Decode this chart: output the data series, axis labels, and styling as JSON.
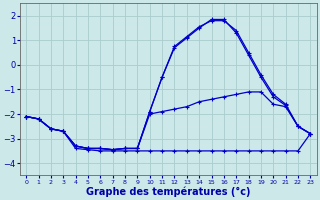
{
  "bg_color": "#cce8e8",
  "grid_color": "#aacccc",
  "line_color": "#0000cc",
  "marker": "+",
  "xlabel": "Graphe des températures (°c)",
  "xlabel_fontsize": 7,
  "xlim": [
    -0.5,
    23.5
  ],
  "ylim": [
    -4.5,
    2.5
  ],
  "yticks": [
    -4,
    -3,
    -2,
    -1,
    0,
    1,
    2
  ],
  "ytick_labels": [
    "-4",
    "-3",
    "-2",
    "-1",
    "0",
    "1",
    "2"
  ],
  "xticks": [
    0,
    1,
    2,
    3,
    4,
    5,
    6,
    7,
    8,
    9,
    10,
    11,
    12,
    13,
    14,
    15,
    16,
    17,
    18,
    19,
    20,
    21,
    22,
    23
  ],
  "series": [
    {
      "x": [
        0,
        1,
        2,
        3,
        4,
        5,
        6,
        7,
        8,
        9,
        10,
        11,
        12,
        13,
        14,
        15,
        16,
        17,
        18,
        19,
        20,
        21,
        22,
        23
      ],
      "y": [
        -2.1,
        -2.2,
        -2.6,
        -2.7,
        -3.4,
        -3.45,
        -3.5,
        -3.5,
        -3.5,
        -3.5,
        -3.5,
        -3.5,
        -3.5,
        -3.5,
        -3.5,
        -3.5,
        -3.5,
        -3.5,
        -3.5,
        -3.5,
        -3.5,
        -3.5,
        -3.5,
        -2.8
      ]
    },
    {
      "x": [
        0,
        1,
        2,
        3,
        4,
        5,
        6,
        7,
        8,
        9,
        10,
        11,
        12,
        13,
        14,
        15,
        16,
        17,
        18,
        19,
        20,
        21,
        22,
        23
      ],
      "y": [
        -2.1,
        -2.2,
        -2.6,
        -2.7,
        -3.3,
        -3.4,
        -3.4,
        -3.45,
        -3.4,
        -3.4,
        -2.0,
        -1.9,
        -1.8,
        -1.7,
        -1.5,
        -1.4,
        -1.3,
        -1.2,
        -1.1,
        -1.1,
        -1.6,
        -1.7,
        -2.5,
        -2.8
      ]
    },
    {
      "x": [
        0,
        1,
        2,
        3,
        4,
        5,
        6,
        7,
        8,
        9,
        10,
        11,
        12,
        13,
        14,
        15,
        16,
        17,
        18,
        19,
        20,
        21,
        22,
        23
      ],
      "y": [
        -2.1,
        -2.2,
        -2.6,
        -2.7,
        -3.3,
        -3.4,
        -3.4,
        -3.45,
        -3.4,
        -3.4,
        -1.9,
        -0.5,
        0.7,
        1.1,
        1.5,
        1.85,
        1.85,
        1.3,
        0.4,
        -0.5,
        -1.3,
        -1.65,
        -2.5,
        -2.8
      ]
    },
    {
      "x": [
        0,
        1,
        2,
        3,
        4,
        5,
        6,
        7,
        8,
        9,
        10,
        11,
        12,
        13,
        14,
        15,
        16,
        17,
        18,
        19,
        20,
        21,
        22,
        23
      ],
      "y": [
        -2.1,
        -2.2,
        -2.6,
        -2.7,
        -3.3,
        -3.4,
        -3.4,
        -3.45,
        -3.4,
        -3.4,
        -1.9,
        -0.5,
        0.75,
        1.15,
        1.55,
        1.8,
        1.8,
        1.4,
        0.5,
        -0.4,
        -1.2,
        -1.6,
        -2.5,
        -2.8
      ]
    }
  ]
}
